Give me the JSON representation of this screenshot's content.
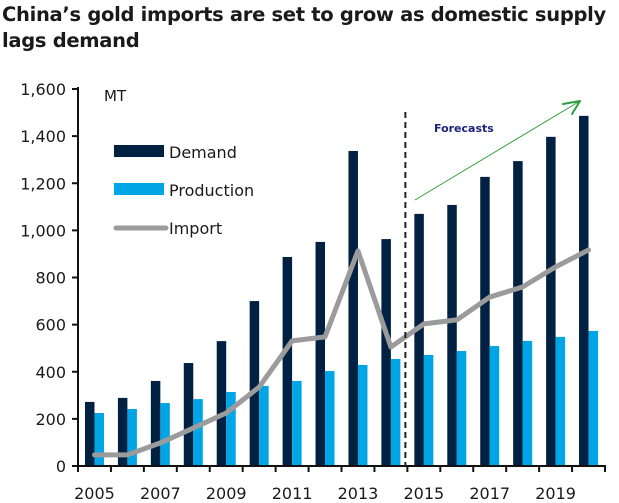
{
  "chart_data": {
    "type": "bar",
    "title": "China’s gold imports are set to grow as domestic supply lags demand",
    "xlabel": "",
    "ylabel": "MT",
    "ylim": [
      0,
      1600
    ],
    "yticks": [
      0,
      200,
      400,
      600,
      800,
      1000,
      1200,
      1400,
      1600
    ],
    "ytick_labels": [
      "0",
      "200",
      "400",
      "600",
      "800",
      "1,000",
      "1,200",
      "1,400",
      "1,600"
    ],
    "categories": [
      "2005",
      "2006",
      "2007",
      "2008",
      "2009",
      "2010",
      "2011",
      "2012",
      "2013",
      "2014",
      "2015",
      "2016",
      "2017",
      "2018",
      "2019",
      "2020"
    ],
    "xtick_labels": [
      "2005",
      "2007",
      "2009",
      "2011",
      "2013",
      "2015",
      "2017",
      "2019"
    ],
    "grid": false,
    "legend_position": "top-left",
    "series": [
      {
        "name": "Demand",
        "kind": "bar",
        "color": "#002142",
        "values": [
          272,
          289,
          361,
          437,
          530,
          700,
          887,
          951,
          1337,
          963,
          1070,
          1108,
          1227,
          1294,
          1397,
          1486
        ]
      },
      {
        "name": "Production",
        "kind": "bar",
        "color": "#00A5E6",
        "values": [
          225,
          242,
          267,
          284,
          314,
          340,
          361,
          403,
          429,
          454,
          471,
          488,
          509,
          531,
          548,
          573
        ]
      },
      {
        "name": "Import",
        "kind": "line",
        "color": "#9B9B9B",
        "values": [
          47,
          47,
          98,
          161,
          225,
          335,
          531,
          548,
          913,
          505,
          603,
          620,
          717,
          760,
          845,
          917
        ]
      }
    ],
    "annotations": {
      "forecast_label": "Forecasts",
      "forecast_start_after": "2014",
      "forecast_divider": "dashed vertical line",
      "trend_arrow_color": "#2E9E3E"
    }
  }
}
